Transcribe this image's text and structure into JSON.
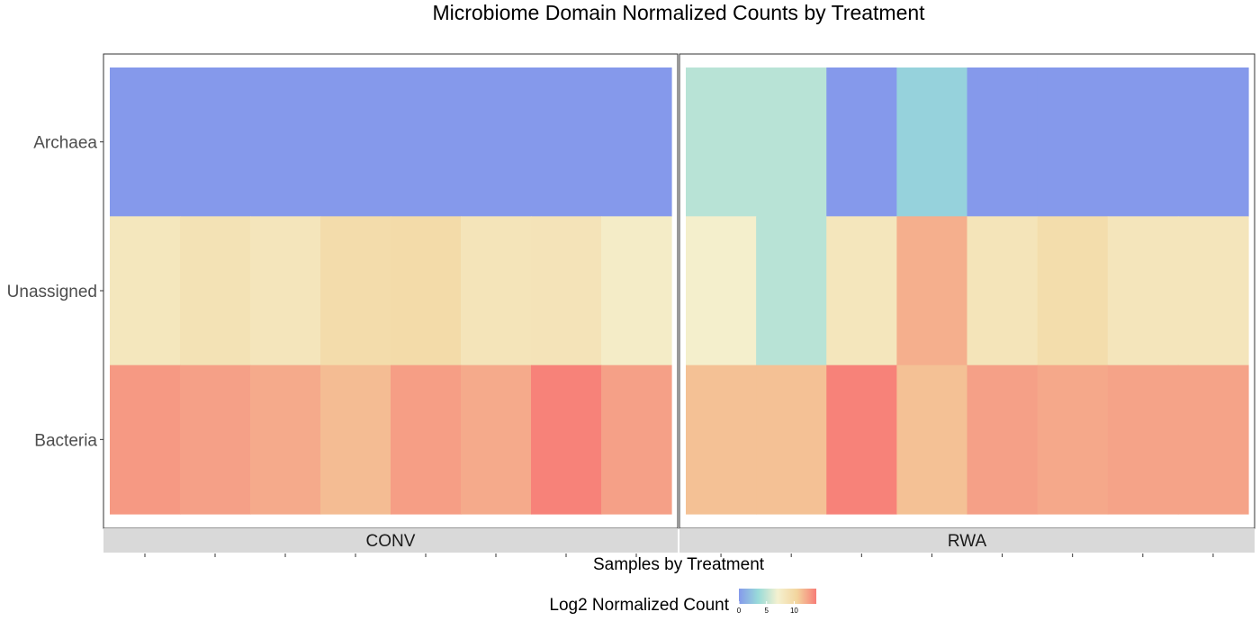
{
  "chart_data": {
    "type": "heatmap",
    "title": "Microbiome Domain Normalized Counts by Treatment",
    "xlabel": "Samples by Treatment",
    "rows": [
      "Archaea",
      "Unassigned",
      "Bacteria"
    ],
    "facets": [
      {
        "name": "CONV",
        "values": [
          [
            0,
            0,
            0,
            0,
            0,
            0,
            0,
            0
          ],
          [
            8.3,
            8.9,
            8.5,
            9.6,
            9.7,
            8.6,
            8.7,
            7.6
          ],
          [
            12.9,
            12.6,
            12.2,
            11.5,
            12.7,
            12.2,
            13.8,
            12.6
          ]
        ]
      },
      {
        "name": "RWA",
        "values": [
          [
            4.7,
            4.7,
            0,
            3.0,
            0,
            0,
            0,
            0
          ],
          [
            7.3,
            4.7,
            8.4,
            12.0,
            8.6,
            9.5,
            8.5,
            8.5
          ],
          [
            11.3,
            11.3,
            13.8,
            11.3,
            12.6,
            12.3,
            12.5,
            12.5
          ]
        ]
      }
    ],
    "legend": {
      "title": "Log2 Normalized Count",
      "ticks": [
        0,
        5,
        10
      ],
      "range": [
        0,
        14
      ],
      "colors": [
        "#8599eb",
        "#99dbd9",
        "#f4f1d0",
        "#f3d59e",
        "#f77d77"
      ]
    }
  }
}
